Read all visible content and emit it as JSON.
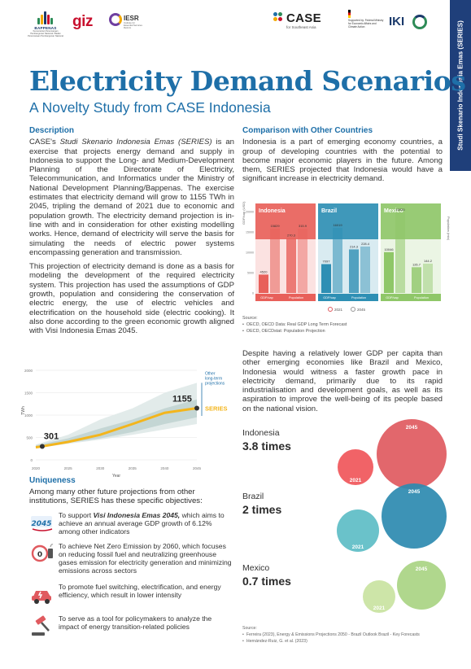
{
  "header": {
    "logos": {
      "bappenas": "BAPPENAS",
      "bappenas_sub": "Kementerian Perencanaan Pembangunan Nasional / Badan Perencanaan Pembangunan Nasional",
      "giz": "giz",
      "iesr": "IESR",
      "iesr_sub": "Institute for Essential Services Reform",
      "case": "CASE",
      "case_sub": "for Southeast Asia",
      "bmwk_sub": "Supported by: Federal Ministry for Economic Affairs and Climate Action",
      "iki": "IKI"
    },
    "side_tab": "Studi Skenario Indonesia Emas (SERIES)"
  },
  "title": "Electricity Demand Scenarios",
  "subtitle": "A Novelty Study from CASE Indonesia",
  "description": {
    "heading": "Description",
    "p1_a": "CASE's ",
    "p1_em": "Studi Skenario Indonesia Emas (SERIES)",
    "p1_b": " is an exercise that projects energy demand and supply in Indonesia to support the Long- and Medium-Development Planning of the Directorate of Electricity, Telecommunication, and Informatics under the Ministry of National Development Planning/Bappenas. The exercise estimates that electricity demand will grow to 1155 TWh in 2045, tripling the demand of 2021 due to economic and population growth. The electricity demand projection is in-line with and in consideration for other existing modelling works. Hence, demand of electricity will serve the basis for simulating the needs of electric power systems encompassing generation and transmission.",
    "p2": "This projection of electricity demand is done as a basis for modeling the development of the required electricity system. This projection has used the assumptions of GDP growth, population and considering the conservation of electric energy, the use of electric vehicles and electrification on the household side (electric cooking). It also done according to the green economic growth aligned with Visi Indonesia Emas 2045."
  },
  "chart_data": [
    {
      "type": "area",
      "title": "",
      "xlabel": "Year",
      "ylabel": "TWh",
      "x": [
        2020,
        2025,
        2030,
        2035,
        2040,
        2045
      ],
      "xticks": [
        "2020",
        "2025",
        "2030",
        "2035",
        "2040",
        "2045"
      ],
      "yticks": [
        "0",
        "500",
        "1000",
        "1500",
        "2000"
      ],
      "ylim": [
        0,
        2000
      ],
      "series": [
        {
          "name": "SERIES",
          "x": [
            2020,
            2021,
            2025,
            2030,
            2035,
            2040,
            2045
          ],
          "values": [
            280,
            301,
            400,
            560,
            800,
            1050,
            1155
          ]
        }
      ],
      "band_outer": {
        "low": [
          260,
          360,
          450,
          560,
          680,
          800
        ],
        "high": [
          340,
          560,
          900,
          1150,
          1500,
          1720
        ]
      },
      "band_inner": {
        "low": [
          275,
          380,
          480,
          620,
          800,
          950
        ],
        "high": [
          320,
          480,
          700,
          900,
          1150,
          1350
        ]
      },
      "annotations": {
        "start_value": "301",
        "end_value": "1155",
        "series_label": "SERIES",
        "other_label_1": "Other",
        "other_label_2": "long-term",
        "other_label_3": "projections"
      }
    },
    {
      "type": "bar",
      "title": "",
      "categories": [
        "Indonesia",
        "Brazil",
        "Mexico"
      ],
      "series": [
        {
          "name": "GDP/cap",
          "values_2021": [
            4520,
            7097,
            10046
          ],
          "values_2045": [
            15829,
            16019,
            19830
          ]
        },
        {
          "name": "Population",
          "values_2021": [
            270.3,
            214.3,
            126.7
          ],
          "values_2045": [
            315.9,
            228.4,
            144.2
          ]
        }
      ],
      "left_axis_label": "GDP/cap (USD)",
      "right_axis_label": "Population (mio)",
      "yticks": [
        "0",
        "5000",
        "10000",
        "15000",
        "20000"
      ],
      "ylim": [
        0,
        20000
      ],
      "legend": [
        "2021",
        "2045"
      ],
      "legend_position": "bottom",
      "bar_labels": {
        "gdp": "GDP/cap",
        "pop": "Population"
      },
      "colors": {
        "Indonesia": "#e8605a",
        "Brazil": "#2e8fb4",
        "Mexico": "#8fc768",
        "light_2045": "#f6c9c2"
      }
    },
    {
      "type": "scatter",
      "title": "",
      "categories": [
        "Indonesia",
        "Brazil",
        "Mexico"
      ],
      "multipliers": [
        "3.8 times",
        "2 times",
        "0.7 times"
      ],
      "bubble_labels": [
        "2021",
        "2045"
      ],
      "colors": {
        "Indonesia_2021": "#f0565a",
        "Indonesia_2045": "#e05a5f",
        "Brazil_2021": "#5dbdc6",
        "Brazil_2045": "#2d8ab0",
        "Mexico_2021": "#c9e3a1",
        "Mexico_2045": "#a9d483"
      }
    }
  ],
  "uniqueness": {
    "heading": "Uniqueness",
    "intro": "Among many other future projections from other institutions, SERIES has these specific objectives:",
    "items": [
      {
        "icon": "visi-2045-icon",
        "lead": "To support ",
        "em": "Visi Indonesia Emas 2045,",
        "rest": " which aims to achieve an annual average GDP growth of 6.12% among other indicators"
      },
      {
        "icon": "net-zero-icon",
        "text": "To achieve Net Zero Emission by 2060, which focuses on reducing fossil fuel and neutralizing greenhouse gases emission for electricity generation and minimizing emissions across sectors"
      },
      {
        "icon": "electric-car-icon",
        "text": "To promote fuel switching, electrification, and energy efficiency, which result in lower intensity"
      },
      {
        "icon": "gavel-icon",
        "text": "To serve as a tool for policymakers to analyze the impact of energy transition-related policies"
      }
    ]
  },
  "comparison": {
    "heading": "Comparison with Other Countries",
    "p1": "Indonesia is a part of emerging economy countries, a group of developing countries with the potential to become major economic players in the future. Among them, SERIES projected that Indonesia would have a significant increase in electricity demand.",
    "sources_label": "Source:",
    "sources": [
      "OECD, OECD Data: Real GDP Long Term Forecast",
      "OECD, OECDstat: Population Projection"
    ],
    "p2": "Despite having a relatively lower GDP per capita than other emerging economies like Brazil and Mexico, Indonesia would witness a faster growth pace in electricity demand, primarily due to its rapid industrialisation and development goals, as well as its aspiration to improve the well-being of its people based on the national vision.",
    "bottom_sources_label": "Source:",
    "bottom_sources": [
      "Ferreira (2023), Energy & Emissions Projections 2050 - Brazil Outlook Brazil - Key Forecasts",
      "Hernández-Ruiz, G. et al. (2023)"
    ]
  }
}
